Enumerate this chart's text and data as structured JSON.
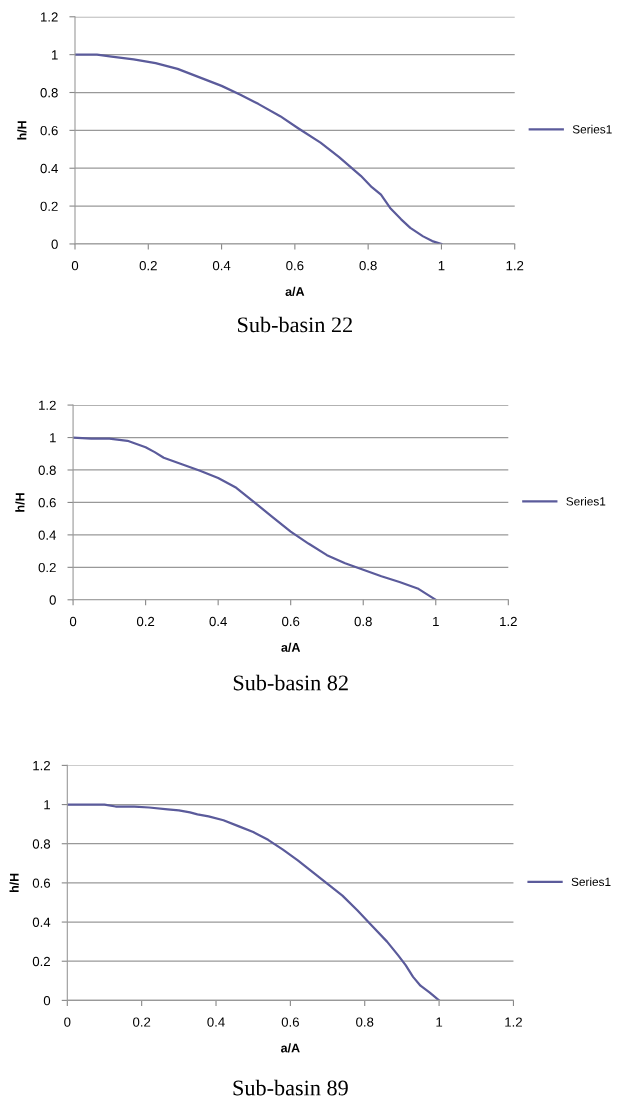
{
  "chart_data": [
    {
      "type": "line",
      "title": "Sub-basin 22",
      "xlabel": "a/A",
      "ylabel": "h/H",
      "xlim": [
        0,
        1.2
      ],
      "ylim": [
        0,
        1.2
      ],
      "xticks": [
        0,
        0.2,
        0.4,
        0.6,
        0.8,
        1,
        1.2
      ],
      "yticks": [
        0,
        0.2,
        0.4,
        0.6,
        0.8,
        1,
        1.2
      ],
      "grid": "y",
      "legend": "right",
      "marker": "none",
      "series": [
        {
          "name": "Series1",
          "color": "#5b5b9b",
          "x": [
            0,
            0.06,
            0.1,
            0.16,
            0.22,
            0.28,
            0.34,
            0.4,
            0.45,
            0.5,
            0.56,
            0.61,
            0.67,
            0.72,
            0.75,
            0.78,
            0.81,
            0.835,
            0.86,
            0.89,
            0.915,
            0.95,
            0.975,
            1
          ],
          "values": [
            1,
            1,
            0.99,
            0.975,
            0.955,
            0.925,
            0.88,
            0.835,
            0.79,
            0.74,
            0.675,
            0.61,
            0.535,
            0.46,
            0.41,
            0.36,
            0.3,
            0.26,
            0.19,
            0.13,
            0.085,
            0.04,
            0.015,
            0
          ]
        }
      ]
    },
    {
      "type": "line",
      "title": "Sub-basin 82",
      "xlabel": "a/A",
      "ylabel": "h/H",
      "xlim": [
        0,
        1.2
      ],
      "ylim": [
        0,
        1.2
      ],
      "xticks": [
        0,
        0.2,
        0.4,
        0.6,
        0.8,
        1,
        1.2
      ],
      "yticks": [
        0,
        0.2,
        0.4,
        0.6,
        0.8,
        1,
        1.2
      ],
      "grid": "y",
      "legend": "right",
      "marker": "none",
      "series": [
        {
          "name": "Series1",
          "color": "#5b5b9b",
          "x": [
            0,
            0.05,
            0.1,
            0.15,
            0.2,
            0.225,
            0.25,
            0.3,
            0.35,
            0.4,
            0.45,
            0.5,
            0.55,
            0.6,
            0.65,
            0.7,
            0.75,
            0.8,
            0.85,
            0.9,
            0.95,
            0.975,
            1
          ],
          "values": [
            1,
            0.993,
            0.993,
            0.98,
            0.94,
            0.91,
            0.875,
            0.835,
            0.795,
            0.75,
            0.69,
            0.6,
            0.51,
            0.42,
            0.345,
            0.275,
            0.225,
            0.185,
            0.145,
            0.11,
            0.07,
            0.035,
            0
          ]
        }
      ]
    },
    {
      "type": "line",
      "title": "Sub-basin 89",
      "xlabel": "a/A",
      "ylabel": "h/H",
      "xlim": [
        0,
        1.2
      ],
      "ylim": [
        0,
        1.2
      ],
      "xticks": [
        0,
        0.2,
        0.4,
        0.6,
        0.8,
        1,
        1.2
      ],
      "yticks": [
        0,
        0.2,
        0.4,
        0.6,
        0.8,
        1,
        1.2
      ],
      "grid": "y",
      "legend": "right",
      "marker": "none",
      "series": [
        {
          "name": "Series1",
          "color": "#5b5b9b",
          "x": [
            0,
            0.1,
            0.13,
            0.18,
            0.22,
            0.27,
            0.3,
            0.33,
            0.35,
            0.38,
            0.42,
            0.46,
            0.5,
            0.54,
            0.58,
            0.62,
            0.66,
            0.7,
            0.74,
            0.78,
            0.82,
            0.86,
            0.89,
            0.91,
            0.93,
            0.95,
            0.975,
            1
          ],
          "values": [
            1,
            1,
            0.99,
            0.99,
            0.985,
            0.975,
            0.97,
            0.96,
            0.95,
            0.94,
            0.92,
            0.89,
            0.86,
            0.82,
            0.77,
            0.715,
            0.655,
            0.595,
            0.535,
            0.46,
            0.38,
            0.3,
            0.23,
            0.18,
            0.12,
            0.075,
            0.04,
            0
          ]
        }
      ]
    }
  ]
}
